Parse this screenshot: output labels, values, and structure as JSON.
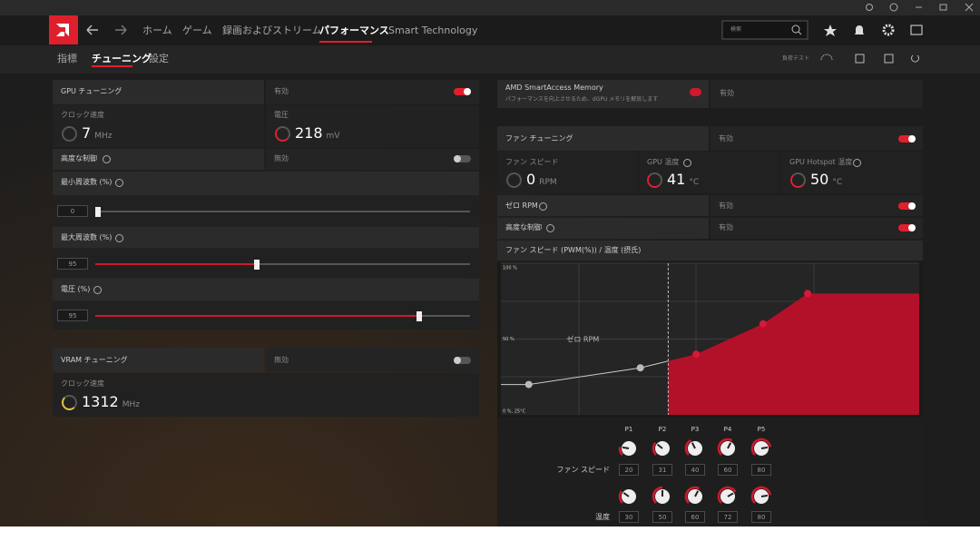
{
  "nav": {
    "items": [
      "ホーム",
      "ゲーム",
      "録画およびストリーム",
      "パフォーマンス",
      "Smart Technology"
    ],
    "search": "検索"
  },
  "subnav": {
    "items": [
      "指標",
      "チューニング",
      "設定"
    ],
    "stress_test": "負荷テスト"
  },
  "gpu_tuning": {
    "label": "GPU チューニング",
    "state": "有効",
    "clock_label": "クロック速度",
    "clock_value": 7,
    "clock_unit": "MHz",
    "voltage_label": "電圧",
    "voltage_value": 218,
    "voltage_unit": "mV",
    "advanced_label": "高度な制御",
    "advanced_state": "無効",
    "sliders": [
      {
        "label": "最小周波数 (%)",
        "value": 0
      },
      {
        "label": "最大周波数 (%)",
        "value": 95
      },
      {
        "label": "電圧 (%)",
        "value": 95
      }
    ]
  },
  "vram_tuning": {
    "label": "VRAM チューニング",
    "state": "無効",
    "clock_label": "クロック速度",
    "clock_value": 1312,
    "clock_unit": "MHz"
  },
  "sam": {
    "label": "AMD SmartAccess Memory",
    "description": "パフォーマンスを向上させるため、dGPU メモリを解放します",
    "state": "有効"
  },
  "fan_tuning": {
    "label": "ファン チューニング",
    "state": "有効",
    "fan_speed_label": "ファン スピード",
    "fan_speed_value": 0,
    "fan_speed_unit": "RPM",
    "gpu_temp_label": "GPU 温度",
    "gpu_temp_value": 41,
    "gpu_temp_unit": "°C",
    "hotspot_label": "GPU Hotspot 温度",
    "hotspot_value": 50,
    "hotspot_unit": "°C",
    "zero_rpm_label": "ゼロ RPM",
    "zero_rpm_state": "有効",
    "advanced_label": "高度な制御",
    "advanced_state": "有効"
  },
  "fan_curve": {
    "title": "ファン スピード (PWM(%)) / 温度 (摂氏)",
    "zero_rpm_text": "ゼロ RPM",
    "zero_rpm_temp": 55,
    "xlim": [
      25,
      100
    ],
    "ylim": [
      0,
      100
    ],
    "yticks": [
      {
        "value": 50,
        "label": "50 %"
      },
      {
        "value": 100,
        "label": "100 %"
      }
    ],
    "xticks": [
      {
        "value": 25,
        "label": "0 %, 25°C"
      },
      {
        "value": 62,
        "label": "62°C"
      },
      {
        "value": 100,
        "label": "100°C"
      }
    ],
    "points": [
      "P1",
      "P2",
      "P3",
      "P4",
      "P5"
    ],
    "speed_label": "ファン スピード",
    "speed": [
      20,
      31,
      40,
      60,
      80
    ],
    "temp_label": "温度",
    "temp": [
      30,
      50,
      60,
      72,
      80
    ]
  }
}
